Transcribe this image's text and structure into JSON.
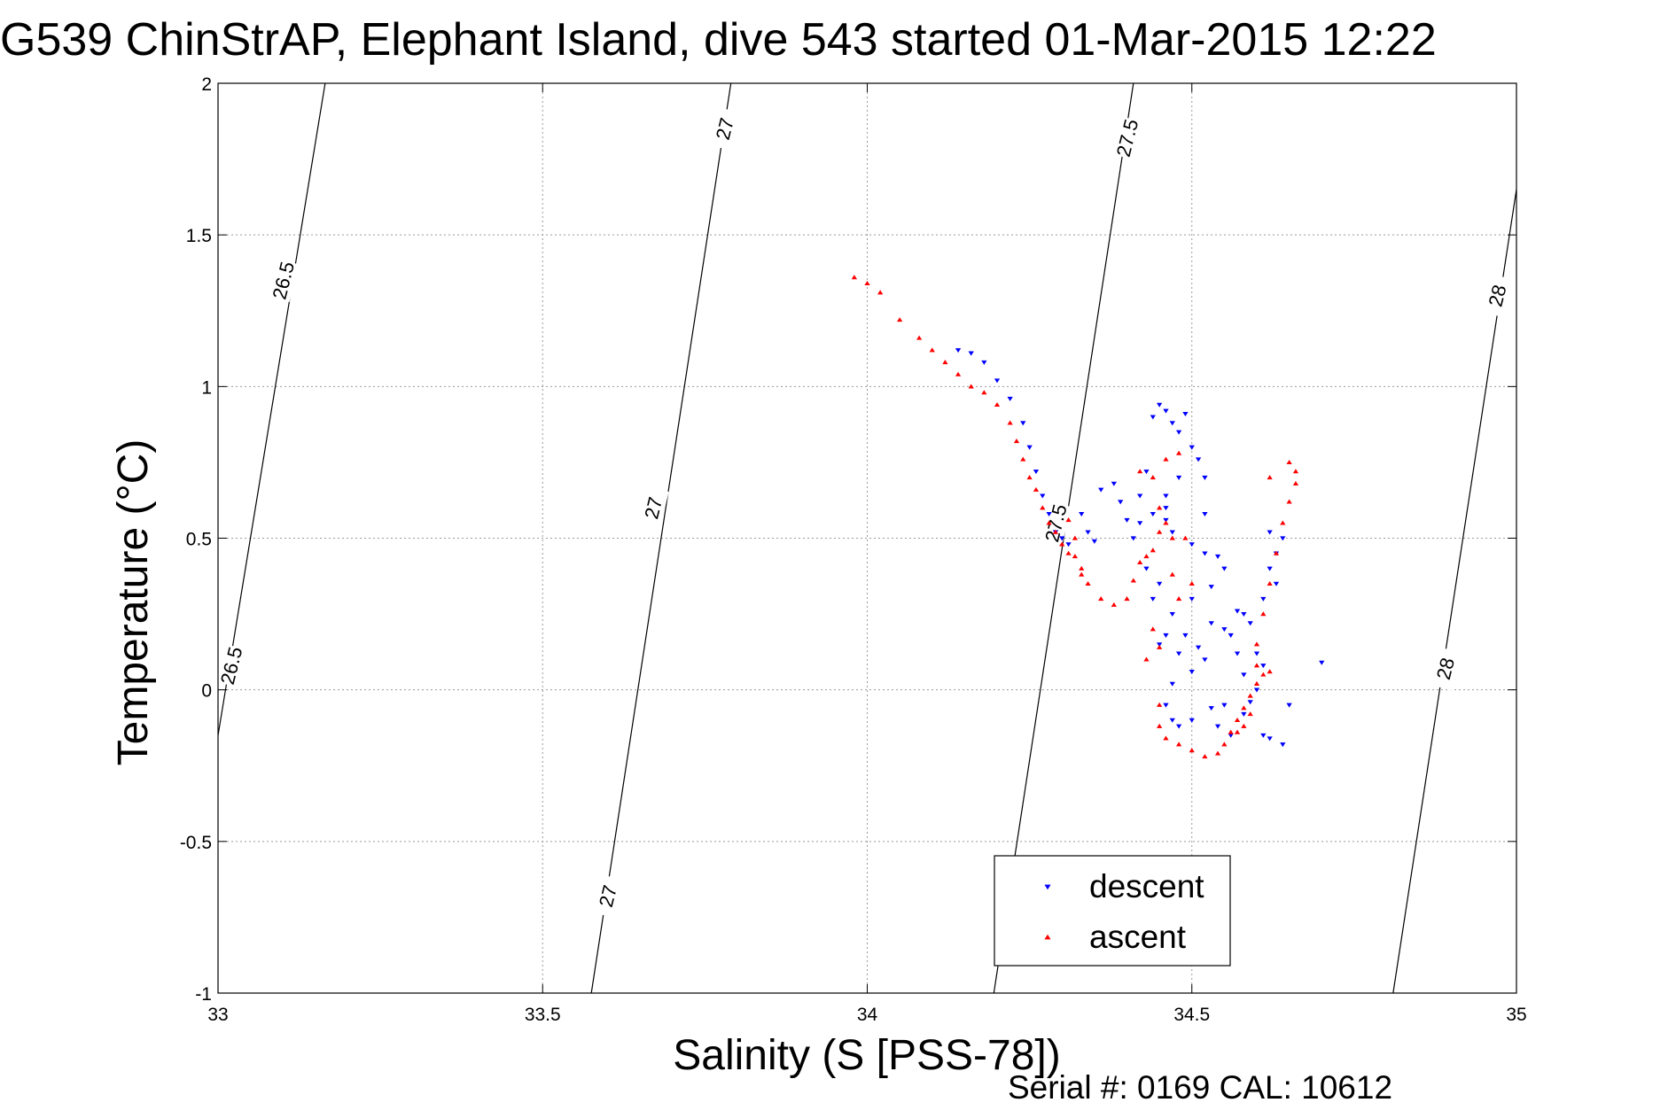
{
  "chart_data": {
    "type": "scatter",
    "title": "G539 ChinStrAP, Elephant Island, dive 543 started 01-Mar-2015 12:22",
    "xlabel": "Salinity (S [PSS-78])",
    "ylabel": "Temperature (°C)",
    "xlim": [
      33,
      35
    ],
    "ylim": [
      -1,
      2
    ],
    "xticks": [
      "33",
      "33.5",
      "34",
      "34.5",
      "35"
    ],
    "yticks": [
      "-1",
      "-0.5",
      "0",
      "0.5",
      "1",
      "1.5",
      "2"
    ],
    "grid": true,
    "legend_position": "bottom-center",
    "footer": "Serial #: 0169 CAL: 10612",
    "density_contours": [
      {
        "label": "26.5",
        "points": [
          [
            33.0,
            -0.15
          ],
          [
            33.165,
            2.0
          ]
        ]
      },
      {
        "label": "27",
        "points": [
          [
            33.575,
            -1.0
          ],
          [
            33.79,
            2.0
          ]
        ]
      },
      {
        "label": "27.5",
        "points": [
          [
            34.195,
            -1.0
          ],
          [
            34.41,
            2.0
          ]
        ]
      },
      {
        "label": "28",
        "points": [
          [
            34.81,
            -1.0
          ],
          [
            35.0,
            1.65
          ]
        ]
      }
    ],
    "contour_labels": [
      {
        "text": "26.5",
        "x": 33.1,
        "y": 1.35
      },
      {
        "text": "26.5",
        "x": 33.02,
        "y": 0.08
      },
      {
        "text": "27",
        "x": 33.78,
        "y": 1.85
      },
      {
        "text": "27",
        "x": 33.67,
        "y": 0.6
      },
      {
        "text": "27",
        "x": 33.6,
        "y": -0.68
      },
      {
        "text": "27.5",
        "x": 34.4,
        "y": 1.82
      },
      {
        "text": "27.5",
        "x": 34.29,
        "y": 0.55
      },
      {
        "text": "28",
        "x": 34.97,
        "y": 1.3
      },
      {
        "text": "28",
        "x": 34.89,
        "y": 0.07
      }
    ],
    "series": [
      {
        "name": "descent",
        "color": "#0000ff",
        "marker": "triangle-down",
        "points": [
          [
            34.14,
            1.12
          ],
          [
            34.16,
            1.11
          ],
          [
            34.18,
            1.08
          ],
          [
            34.2,
            1.02
          ],
          [
            34.22,
            0.96
          ],
          [
            34.24,
            0.88
          ],
          [
            34.25,
            0.8
          ],
          [
            34.26,
            0.72
          ],
          [
            34.27,
            0.64
          ],
          [
            34.28,
            0.58
          ],
          [
            34.29,
            0.52
          ],
          [
            34.3,
            0.5
          ],
          [
            34.31,
            0.48
          ],
          [
            34.33,
            0.58
          ],
          [
            34.34,
            0.52
          ],
          [
            34.35,
            0.49
          ],
          [
            34.36,
            0.66
          ],
          [
            34.38,
            0.68
          ],
          [
            34.39,
            0.62
          ],
          [
            34.4,
            0.56
          ],
          [
            34.41,
            0.5
          ],
          [
            34.42,
            0.64
          ],
          [
            34.43,
            0.72
          ],
          [
            34.44,
            0.9
          ],
          [
            34.45,
            0.94
          ],
          [
            34.46,
            0.92
          ],
          [
            34.47,
            0.88
          ],
          [
            34.48,
            0.85
          ],
          [
            34.49,
            0.91
          ],
          [
            34.46,
            0.6
          ],
          [
            34.46,
            0.56
          ],
          [
            34.47,
            0.52
          ],
          [
            34.46,
            0.64
          ],
          [
            34.5,
            0.8
          ],
          [
            34.51,
            0.76
          ],
          [
            34.52,
            0.7
          ],
          [
            34.5,
            0.48
          ],
          [
            34.52,
            0.45
          ],
          [
            34.54,
            0.44
          ],
          [
            34.53,
            0.34
          ],
          [
            34.5,
            0.3
          ],
          [
            34.47,
            0.25
          ],
          [
            34.46,
            0.18
          ],
          [
            34.45,
            0.15
          ],
          [
            34.48,
            0.12
          ],
          [
            34.5,
            0.06
          ],
          [
            34.47,
            0.02
          ],
          [
            34.46,
            -0.05
          ],
          [
            34.47,
            -0.1
          ],
          [
            34.48,
            -0.12
          ],
          [
            34.49,
            0.18
          ],
          [
            34.51,
            0.14
          ],
          [
            34.52,
            0.1
          ],
          [
            34.53,
            0.22
          ],
          [
            34.55,
            0.2
          ],
          [
            34.56,
            0.18
          ],
          [
            34.57,
            0.12
          ],
          [
            34.58,
            0.05
          ],
          [
            34.55,
            -0.05
          ],
          [
            34.54,
            -0.12
          ],
          [
            34.56,
            -0.15
          ],
          [
            34.58,
            -0.08
          ],
          [
            34.59,
            -0.04
          ],
          [
            34.6,
            0.0
          ],
          [
            34.61,
            0.08
          ],
          [
            34.59,
            0.22
          ],
          [
            34.58,
            0.25
          ],
          [
            34.61,
            0.3
          ],
          [
            34.62,
            0.4
          ],
          [
            34.63,
            0.45
          ],
          [
            34.62,
            0.52
          ],
          [
            34.64,
            0.5
          ],
          [
            34.61,
            -0.15
          ],
          [
            34.62,
            -0.16
          ],
          [
            34.64,
            -0.18
          ],
          [
            34.7,
            0.09
          ],
          [
            34.65,
            -0.05
          ],
          [
            34.43,
            0.4
          ],
          [
            34.45,
            0.35
          ],
          [
            34.44,
            0.3
          ],
          [
            34.52,
            0.58
          ],
          [
            34.55,
            0.4
          ],
          [
            34.57,
            0.26
          ],
          [
            34.5,
            -0.1
          ],
          [
            34.53,
            -0.06
          ],
          [
            34.6,
            0.12
          ],
          [
            34.63,
            0.35
          ],
          [
            34.48,
            0.7
          ],
          [
            34.44,
            0.58
          ],
          [
            34.42,
            0.55
          ]
        ]
      },
      {
        "name": "ascent",
        "color": "#ff0000",
        "marker": "triangle-up",
        "points": [
          [
            33.98,
            1.36
          ],
          [
            34.0,
            1.34
          ],
          [
            34.02,
            1.31
          ],
          [
            34.05,
            1.22
          ],
          [
            34.08,
            1.16
          ],
          [
            34.1,
            1.12
          ],
          [
            34.12,
            1.08
          ],
          [
            34.14,
            1.04
          ],
          [
            34.16,
            1.0
          ],
          [
            34.18,
            0.98
          ],
          [
            34.2,
            0.94
          ],
          [
            34.22,
            0.88
          ],
          [
            34.23,
            0.82
          ],
          [
            34.24,
            0.76
          ],
          [
            34.25,
            0.7
          ],
          [
            34.26,
            0.66
          ],
          [
            34.27,
            0.6
          ],
          [
            34.28,
            0.55
          ],
          [
            34.29,
            0.52
          ],
          [
            34.3,
            0.48
          ],
          [
            34.31,
            0.45
          ],
          [
            34.32,
            0.44
          ],
          [
            34.33,
            0.4
          ],
          [
            34.32,
            0.5
          ],
          [
            34.31,
            0.56
          ],
          [
            34.33,
            0.38
          ],
          [
            34.34,
            0.35
          ],
          [
            34.36,
            0.3
          ],
          [
            34.38,
            0.28
          ],
          [
            34.4,
            0.3
          ],
          [
            34.41,
            0.36
          ],
          [
            34.42,
            0.42
          ],
          [
            34.43,
            0.44
          ],
          [
            34.44,
            0.46
          ],
          [
            34.45,
            0.52
          ],
          [
            34.46,
            0.55
          ],
          [
            34.47,
            0.5
          ],
          [
            34.45,
            0.6
          ],
          [
            34.44,
            0.7
          ],
          [
            34.46,
            0.76
          ],
          [
            34.48,
            0.78
          ],
          [
            34.42,
            0.72
          ],
          [
            34.44,
            0.2
          ],
          [
            34.45,
            0.14
          ],
          [
            34.43,
            0.1
          ],
          [
            34.45,
            -0.05
          ],
          [
            34.45,
            -0.12
          ],
          [
            34.46,
            -0.16
          ],
          [
            34.48,
            -0.18
          ],
          [
            34.5,
            -0.2
          ],
          [
            34.52,
            -0.22
          ],
          [
            34.54,
            -0.21
          ],
          [
            34.55,
            -0.18
          ],
          [
            34.56,
            -0.14
          ],
          [
            34.57,
            -0.1
          ],
          [
            34.58,
            -0.06
          ],
          [
            34.59,
            -0.02
          ],
          [
            34.6,
            0.02
          ],
          [
            34.61,
            0.05
          ],
          [
            34.62,
            0.06
          ],
          [
            34.6,
            0.15
          ],
          [
            34.61,
            0.25
          ],
          [
            34.62,
            0.35
          ],
          [
            34.63,
            0.45
          ],
          [
            34.64,
            0.55
          ],
          [
            34.65,
            0.62
          ],
          [
            34.66,
            0.68
          ],
          [
            34.66,
            0.72
          ],
          [
            34.65,
            0.75
          ],
          [
            34.62,
            0.7
          ],
          [
            34.6,
            0.08
          ],
          [
            34.59,
            -0.08
          ],
          [
            34.58,
            -0.12
          ],
          [
            34.57,
            -0.14
          ],
          [
            34.49,
            0.5
          ],
          [
            34.5,
            0.35
          ],
          [
            34.48,
            0.3
          ],
          [
            34.47,
            0.38
          ]
        ]
      }
    ]
  }
}
